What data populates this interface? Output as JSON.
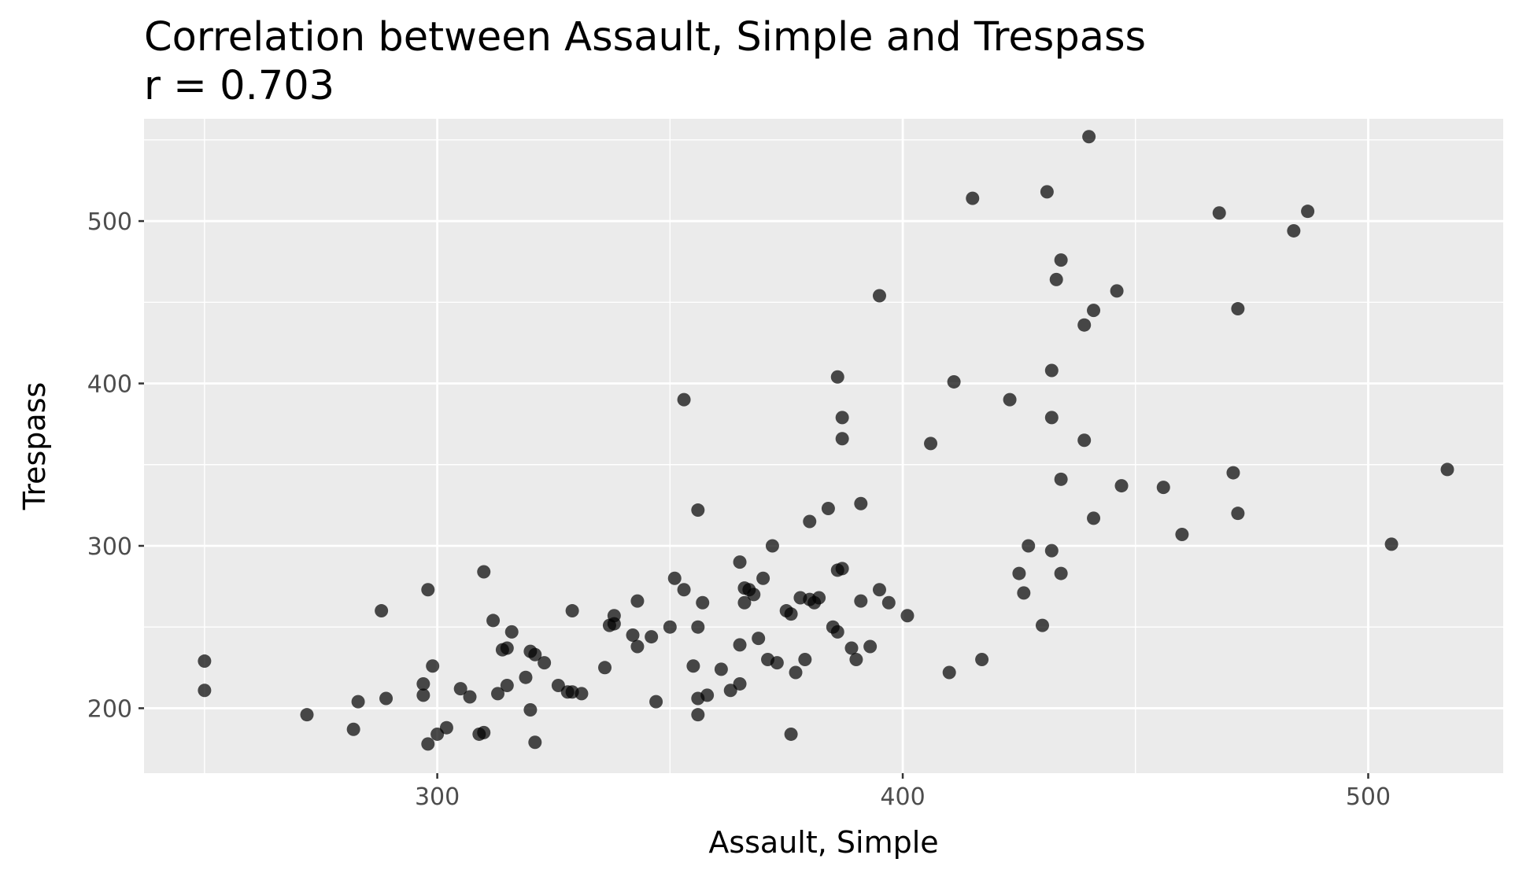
{
  "chart_data": {
    "type": "scatter",
    "title": "Correlation between Assault, Simple and Trespass",
    "subtitle": "r = 0.703",
    "xlabel": "Assault, Simple",
    "ylabel": "Trespass",
    "xlim": [
      237,
      529
    ],
    "ylim": [
      160,
      563
    ],
    "xticks": [
      300,
      400,
      500
    ],
    "yticks": [
      200,
      300,
      400,
      500
    ],
    "grid": true,
    "colors": {
      "panel": "#EBEBEB",
      "grid": "#FFFFFF",
      "point": "#000000",
      "tick_text": "#4D4D4D"
    },
    "points": [
      {
        "x": 250,
        "y": 229
      },
      {
        "x": 250,
        "y": 211
      },
      {
        "x": 272,
        "y": 196
      },
      {
        "x": 282,
        "y": 187
      },
      {
        "x": 283,
        "y": 204
      },
      {
        "x": 288,
        "y": 260
      },
      {
        "x": 289,
        "y": 206
      },
      {
        "x": 297,
        "y": 215
      },
      {
        "x": 297,
        "y": 208
      },
      {
        "x": 298,
        "y": 273
      },
      {
        "x": 298,
        "y": 178
      },
      {
        "x": 299,
        "y": 226
      },
      {
        "x": 300,
        "y": 184
      },
      {
        "x": 302,
        "y": 188
      },
      {
        "x": 305,
        "y": 212
      },
      {
        "x": 307,
        "y": 207
      },
      {
        "x": 309,
        "y": 184
      },
      {
        "x": 310,
        "y": 185
      },
      {
        "x": 310,
        "y": 284
      },
      {
        "x": 312,
        "y": 254
      },
      {
        "x": 313,
        "y": 209
      },
      {
        "x": 314,
        "y": 236
      },
      {
        "x": 315,
        "y": 214
      },
      {
        "x": 315,
        "y": 237
      },
      {
        "x": 316,
        "y": 247
      },
      {
        "x": 319,
        "y": 219
      },
      {
        "x": 320,
        "y": 199
      },
      {
        "x": 320,
        "y": 235
      },
      {
        "x": 321,
        "y": 233
      },
      {
        "x": 321,
        "y": 179
      },
      {
        "x": 323,
        "y": 228
      },
      {
        "x": 326,
        "y": 214
      },
      {
        "x": 328,
        "y": 210
      },
      {
        "x": 329,
        "y": 260
      },
      {
        "x": 329,
        "y": 210
      },
      {
        "x": 331,
        "y": 209
      },
      {
        "x": 336,
        "y": 225
      },
      {
        "x": 337,
        "y": 251
      },
      {
        "x": 338,
        "y": 257
      },
      {
        "x": 338,
        "y": 252
      },
      {
        "x": 342,
        "y": 245
      },
      {
        "x": 343,
        "y": 266
      },
      {
        "x": 343,
        "y": 238
      },
      {
        "x": 346,
        "y": 244
      },
      {
        "x": 347,
        "y": 204
      },
      {
        "x": 350,
        "y": 250
      },
      {
        "x": 351,
        "y": 280
      },
      {
        "x": 353,
        "y": 273
      },
      {
        "x": 353,
        "y": 390
      },
      {
        "x": 355,
        "y": 226
      },
      {
        "x": 356,
        "y": 322
      },
      {
        "x": 356,
        "y": 250
      },
      {
        "x": 356,
        "y": 206
      },
      {
        "x": 356,
        "y": 196
      },
      {
        "x": 357,
        "y": 265
      },
      {
        "x": 358,
        "y": 208
      },
      {
        "x": 361,
        "y": 224
      },
      {
        "x": 363,
        "y": 211
      },
      {
        "x": 365,
        "y": 290
      },
      {
        "x": 365,
        "y": 239
      },
      {
        "x": 365,
        "y": 215
      },
      {
        "x": 366,
        "y": 274
      },
      {
        "x": 366,
        "y": 265
      },
      {
        "x": 367,
        "y": 273
      },
      {
        "x": 368,
        "y": 270
      },
      {
        "x": 369,
        "y": 243
      },
      {
        "x": 370,
        "y": 280
      },
      {
        "x": 371,
        "y": 230
      },
      {
        "x": 372,
        "y": 300
      },
      {
        "x": 373,
        "y": 228
      },
      {
        "x": 375,
        "y": 260
      },
      {
        "x": 376,
        "y": 258
      },
      {
        "x": 376,
        "y": 184
      },
      {
        "x": 377,
        "y": 222
      },
      {
        "x": 378,
        "y": 268
      },
      {
        "x": 379,
        "y": 230
      },
      {
        "x": 380,
        "y": 315
      },
      {
        "x": 380,
        "y": 267
      },
      {
        "x": 381,
        "y": 265
      },
      {
        "x": 382,
        "y": 268
      },
      {
        "x": 384,
        "y": 323
      },
      {
        "x": 385,
        "y": 250
      },
      {
        "x": 386,
        "y": 404
      },
      {
        "x": 386,
        "y": 285
      },
      {
        "x": 386,
        "y": 247
      },
      {
        "x": 387,
        "y": 286
      },
      {
        "x": 387,
        "y": 379
      },
      {
        "x": 387,
        "y": 366
      },
      {
        "x": 389,
        "y": 237
      },
      {
        "x": 390,
        "y": 230
      },
      {
        "x": 391,
        "y": 326
      },
      {
        "x": 391,
        "y": 266
      },
      {
        "x": 393,
        "y": 238
      },
      {
        "x": 395,
        "y": 454
      },
      {
        "x": 395,
        "y": 273
      },
      {
        "x": 397,
        "y": 265
      },
      {
        "x": 401,
        "y": 257
      },
      {
        "x": 406,
        "y": 363
      },
      {
        "x": 410,
        "y": 222
      },
      {
        "x": 411,
        "y": 401
      },
      {
        "x": 415,
        "y": 514
      },
      {
        "x": 417,
        "y": 230
      },
      {
        "x": 423,
        "y": 390
      },
      {
        "x": 425,
        "y": 283
      },
      {
        "x": 426,
        "y": 271
      },
      {
        "x": 427,
        "y": 300
      },
      {
        "x": 430,
        "y": 251
      },
      {
        "x": 431,
        "y": 518
      },
      {
        "x": 432,
        "y": 408
      },
      {
        "x": 432,
        "y": 379
      },
      {
        "x": 432,
        "y": 297
      },
      {
        "x": 433,
        "y": 464
      },
      {
        "x": 434,
        "y": 476
      },
      {
        "x": 434,
        "y": 341
      },
      {
        "x": 434,
        "y": 283
      },
      {
        "x": 439,
        "y": 436
      },
      {
        "x": 439,
        "y": 365
      },
      {
        "x": 440,
        "y": 552
      },
      {
        "x": 441,
        "y": 445
      },
      {
        "x": 441,
        "y": 317
      },
      {
        "x": 446,
        "y": 457
      },
      {
        "x": 447,
        "y": 337
      },
      {
        "x": 456,
        "y": 336
      },
      {
        "x": 460,
        "y": 307
      },
      {
        "x": 468,
        "y": 505
      },
      {
        "x": 471,
        "y": 345
      },
      {
        "x": 472,
        "y": 446
      },
      {
        "x": 472,
        "y": 320
      },
      {
        "x": 484,
        "y": 494
      },
      {
        "x": 487,
        "y": 506
      },
      {
        "x": 505,
        "y": 301
      },
      {
        "x": 517,
        "y": 347
      }
    ]
  }
}
